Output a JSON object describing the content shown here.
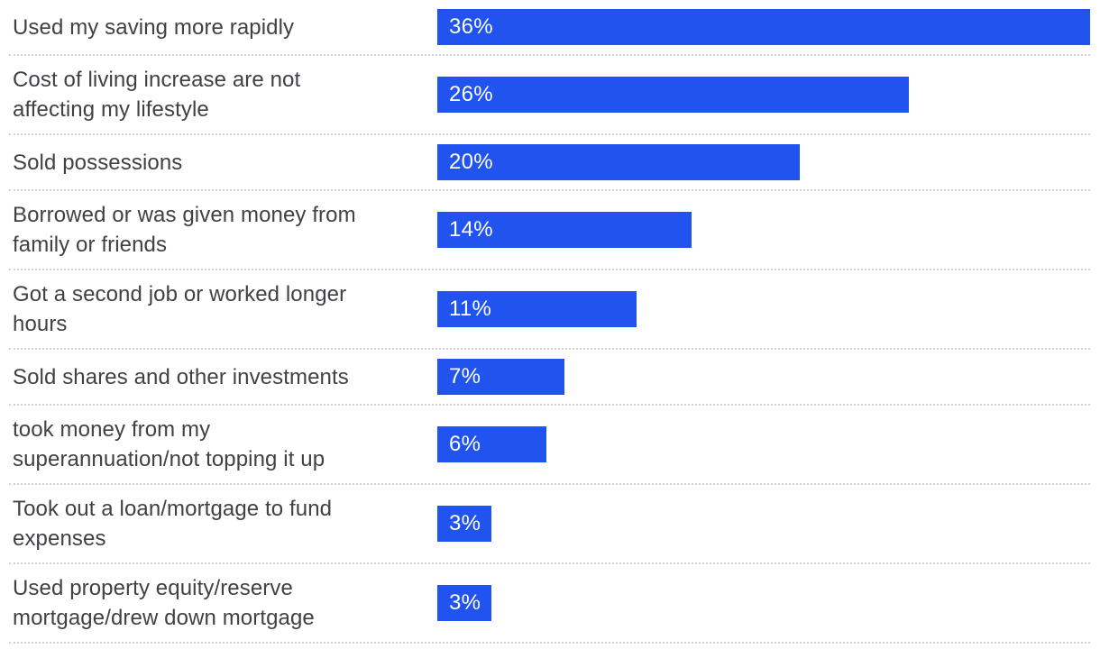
{
  "chart_data": {
    "type": "bar",
    "orientation": "horizontal",
    "title": "",
    "xlabel": "",
    "ylabel": "",
    "value_suffix": "%",
    "axis_max": 36,
    "grid": false,
    "legend": false,
    "categories": [
      "Used my saving more rapidly",
      "Cost of living increase are not affecting my lifestyle",
      "Sold possessions",
      "Borrowed or was given money from family or friends",
      "Got a second job or worked longer hours",
      "Sold shares and other investments",
      "took money from my superannuation/not topping it up",
      "Took out a loan/mortgage to fund expenses",
      "Used property equity/reserve mortgage/drew down mortgage"
    ],
    "values": [
      36,
      26,
      20,
      14,
      11,
      7,
      6,
      3,
      3
    ],
    "rows": [
      {
        "lines": [
          "Used my saving more rapidly"
        ],
        "value": 36,
        "value_label": "36%"
      },
      {
        "lines": [
          "Cost of living increase are not",
          "affecting my lifestyle"
        ],
        "value": 26,
        "value_label": "26%"
      },
      {
        "lines": [
          "Sold possessions"
        ],
        "value": 20,
        "value_label": "20%"
      },
      {
        "lines": [
          "Borrowed or was given money from",
          "family or friends"
        ],
        "value": 14,
        "value_label": "14%"
      },
      {
        "lines": [
          "Got a second job or worked longer",
          "hours"
        ],
        "value": 11,
        "value_label": "11%"
      },
      {
        "lines": [
          "Sold shares and other investments"
        ],
        "value": 7,
        "value_label": "7%"
      },
      {
        "lines": [
          "took money from my",
          "superannuation/not topping it up"
        ],
        "value": 6,
        "value_label": "6%"
      },
      {
        "lines": [
          "Took out a loan/mortgage to fund",
          "expenses"
        ],
        "value": 3,
        "value_label": "3%"
      },
      {
        "lines": [
          "Used property equity/reserve",
          "mortgage/drew down mortgage"
        ],
        "value": 3,
        "value_label": "3%"
      }
    ],
    "colors": {
      "bar": "#2153ee",
      "value_text": "#ffffff",
      "label_text": "#3f4145",
      "divider": "#d3d3d3",
      "background": "#ffffff"
    }
  }
}
